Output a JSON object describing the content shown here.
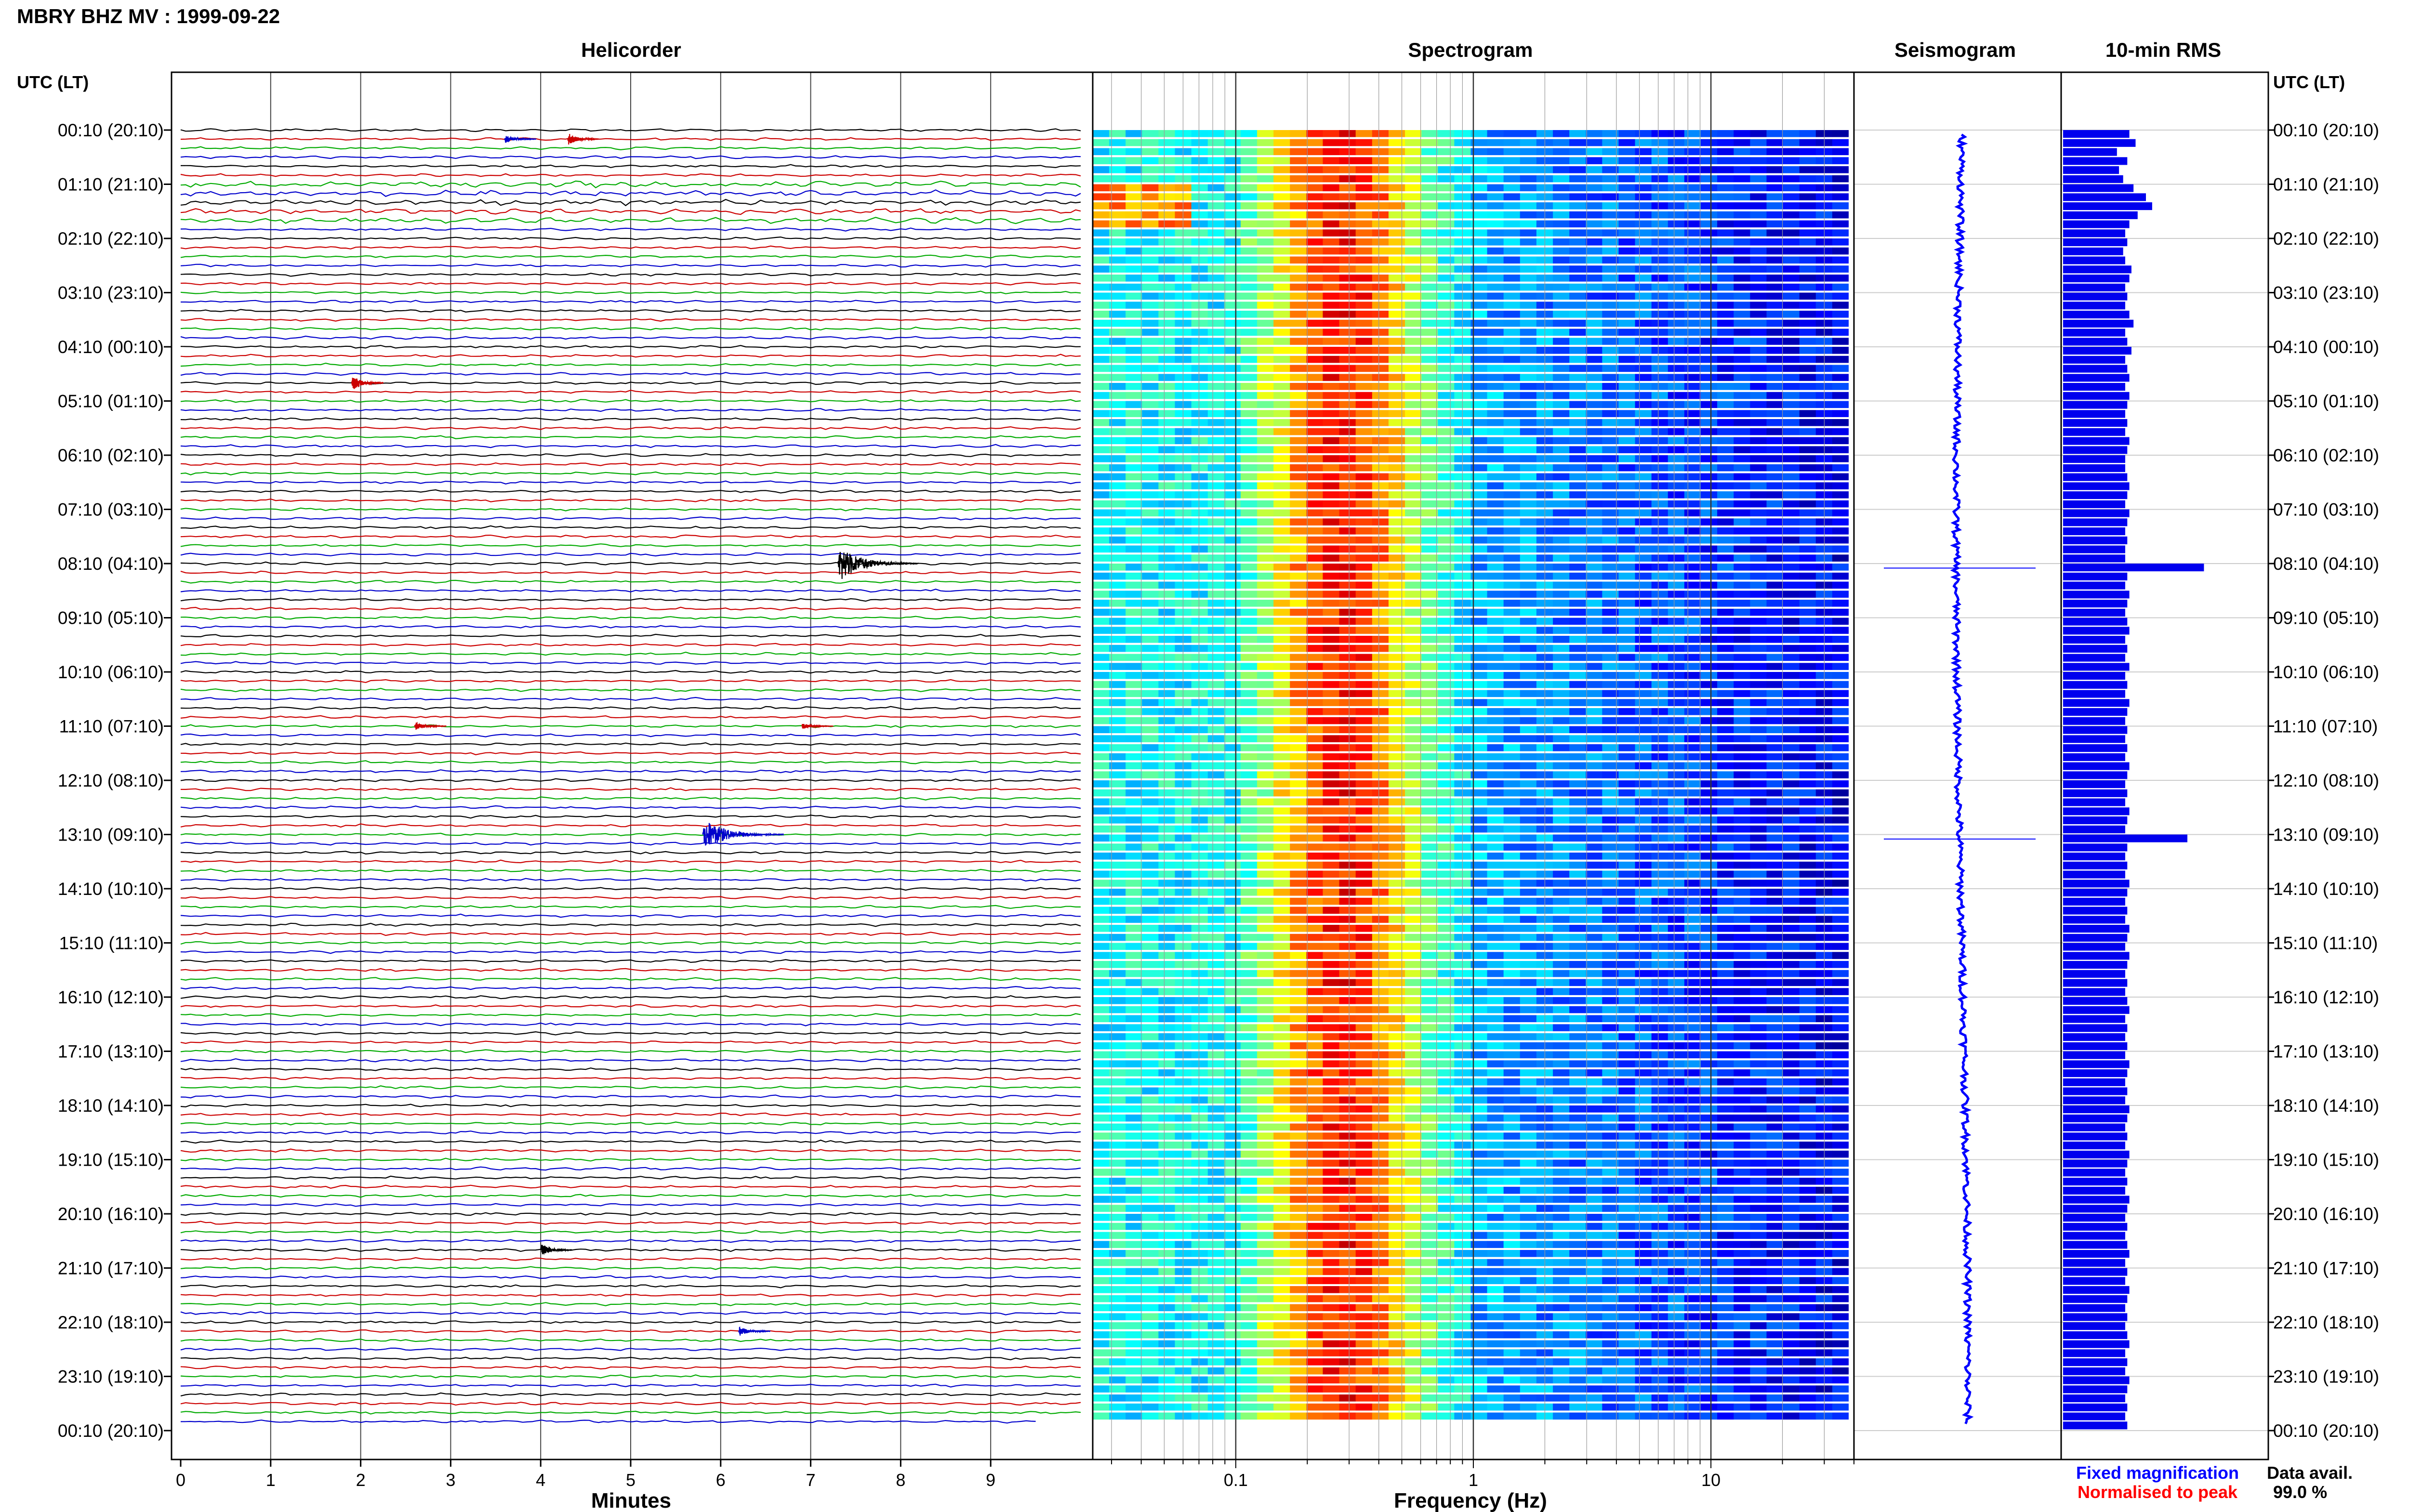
{
  "header": {
    "station_title": "MBRY BHZ MV : 1999-09-22"
  },
  "panels": {
    "helicorder_title": "Helicorder",
    "spectrogram_title": "Spectrogram",
    "seismogram_title": "Seismogram",
    "rms_title": "10-min RMS",
    "left_axis_label": "UTC (LT)",
    "right_axis_label": "UTC (LT)"
  },
  "legend": {
    "fixed": "Fixed magnification",
    "normalised": "Normalised to peak",
    "fixed_color": "#0000ff",
    "normalised_color": "#ff0000"
  },
  "availability": {
    "label": "Data avail.",
    "value": "99.0 %"
  },
  "colors": {
    "trace_cycle": [
      "#000000",
      "#cc0000",
      "#00aa00",
      "#0000cc"
    ],
    "rms_fill": "#0000ee",
    "seis_line": "#0000ff"
  },
  "chart_data": [
    {
      "type": "line",
      "panel": "helicorder",
      "xlabel": "Minutes",
      "x_ticks": [
        "0",
        "1",
        "2",
        "3",
        "4",
        "5",
        "6",
        "7",
        "8",
        "9"
      ],
      "xlim": [
        0,
        10
      ],
      "time_labels": [
        "00:10 (20:10)",
        "01:10 (21:10)",
        "02:10 (22:10)",
        "03:10 (23:10)",
        "04:10 (00:10)",
        "05:10 (01:10)",
        "06:10 (02:10)",
        "07:10 (03:10)",
        "08:10 (04:10)",
        "09:10 (05:10)",
        "10:10 (06:10)",
        "11:10 (07:10)",
        "12:10 (08:10)",
        "13:10 (09:10)",
        "14:10 (10:10)",
        "15:10 (11:10)",
        "16:10 (12:10)",
        "17:10 (13:10)",
        "18:10 (14:10)",
        "19:10 (15:10)",
        "20:10 (16:10)",
        "21:10 (17:10)",
        "22:10 (18:10)",
        "23:10 (19:10)",
        "00:10 (20:10)"
      ],
      "rows": 144,
      "row_minutes": 10,
      "events": [
        {
          "row": 1,
          "minute": 4.3,
          "amp": 3,
          "color": "#cc0000"
        },
        {
          "row": 1,
          "minute": 3.6,
          "amp": 2,
          "color": "#0000cc"
        },
        {
          "row": 28,
          "minute": 1.9,
          "amp": 4,
          "color": "#cc0000"
        },
        {
          "row": 48,
          "minute": 7.3,
          "amp": 9,
          "color": "#000000"
        },
        {
          "row": 66,
          "minute": 2.6,
          "amp": 2,
          "color": "#cc0000"
        },
        {
          "row": 66,
          "minute": 6.9,
          "amp": 1.5,
          "color": "#cc0000"
        },
        {
          "row": 78,
          "minute": 5.8,
          "amp": 8,
          "color": "#0000cc"
        },
        {
          "row": 124,
          "minute": 4.0,
          "amp": 3,
          "color": "#000000"
        },
        {
          "row": 133,
          "minute": 6.2,
          "amp": 2.5,
          "color": "#0000cc"
        }
      ]
    },
    {
      "type": "heatmap",
      "panel": "spectrogram",
      "xlabel": "Frequency (Hz)",
      "x_scale": "log",
      "xlim": [
        0.025,
        40
      ],
      "x_tick_labels": [
        "0.1",
        "1",
        "10"
      ],
      "x_tick_values": [
        0.1,
        1,
        10
      ],
      "colormap": "jet",
      "note_peak_band_hz": [
        0.15,
        0.6
      ]
    },
    {
      "type": "line",
      "panel": "seismogram",
      "spikes_at_rows": [
        48,
        78
      ]
    },
    {
      "type": "bar",
      "panel": "10-min RMS",
      "values": [
        3.2,
        3.5,
        2.6,
        3.1,
        2.7,
        2.9,
        3.4,
        4.0,
        4.3,
        3.6,
        3.2,
        3.0,
        3.1,
        2.9,
        3.0,
        3.3,
        3.2,
        3.0,
        3.1,
        3.0,
        3.2,
        3.4,
        3.0,
        3.1,
        3.3,
        3.0,
        3.1,
        3.2,
        3.0,
        3.2,
        3.1,
        3.0,
        3.1,
        3.0,
        3.2,
        3.1,
        3.0,
        3.0,
        3.1,
        3.2,
        3.1,
        3.0,
        3.2,
        3.1,
        3.0,
        3.1,
        3.0,
        3.0,
        6.8,
        3.1,
        3.0,
        3.2,
        3.1,
        3.0,
        3.1,
        3.2,
        3.0,
        3.1,
        3.0,
        3.2,
        3.0,
        3.1,
        3.0,
        3.2,
        3.1,
        3.0,
        3.1,
        3.0,
        3.1,
        3.0,
        3.2,
        3.1,
        3.0,
        3.1,
        3.0,
        3.2,
        3.1,
        3.0,
        6.0,
        3.1,
        3.0,
        3.1,
        3.0,
        3.2,
        3.1,
        3.0,
        3.1,
        3.0,
        3.2,
        3.1,
        3.0,
        3.2,
        3.1,
        3.0,
        3.1,
        3.0,
        3.1,
        3.2,
        3.0,
        3.1,
        3.0,
        3.1,
        3.0,
        3.2,
        3.1,
        3.0,
        3.1,
        3.0,
        3.2,
        3.1,
        3.0,
        3.1,
        3.0,
        3.2,
        3.1,
        3.0,
        3.1,
        3.0,
        3.2,
        3.1,
        3.0,
        3.1,
        3.0,
        3.1,
        3.2,
        3.0,
        3.1,
        3.0,
        3.2,
        3.1,
        3.0,
        3.1,
        3.0,
        3.1,
        3.2,
        3.0,
        3.1,
        3.0,
        3.2,
        3.1,
        3.0,
        3.1,
        3.0,
        3.1
      ],
      "xlim": [
        0,
        10
      ]
    }
  ]
}
